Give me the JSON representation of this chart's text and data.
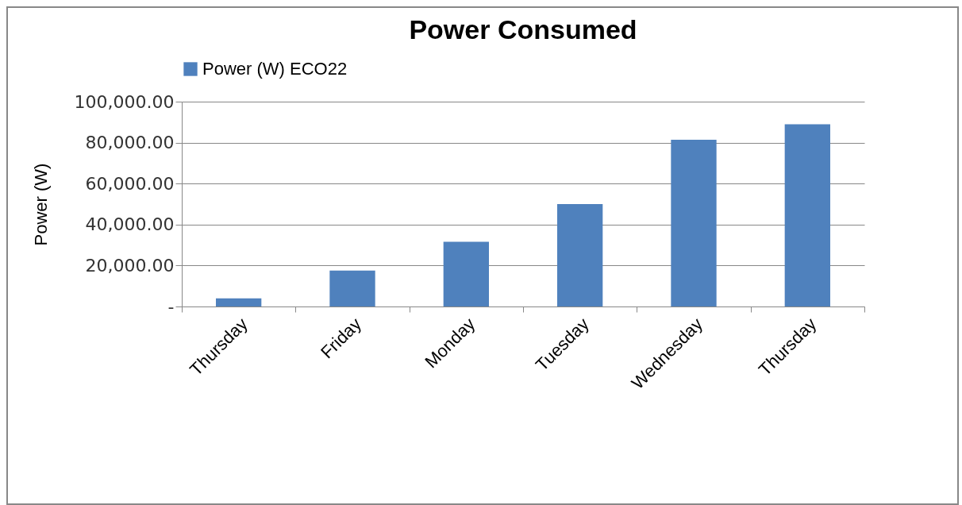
{
  "chart_data": {
    "type": "bar",
    "title": "Power Consumed",
    "ylabel": "Power (W)",
    "categories": [
      "Thursday",
      "Friday",
      "Monday",
      "Tuesday",
      "Wednesday",
      "Thursday"
    ],
    "series": [
      {
        "name": "Power (W) ECO22",
        "color": "#4f81bd",
        "values": [
          4000,
          17500,
          31600,
          50000,
          81400,
          89000
        ]
      }
    ],
    "ylim": [
      0,
      100000
    ],
    "yticks": [
      {
        "value": 0,
        "label": "-"
      },
      {
        "value": 20000,
        "label": "20,000.00"
      },
      {
        "value": 40000,
        "label": "40,000.00"
      },
      {
        "value": 60000,
        "label": "60,000.00"
      },
      {
        "value": 80000,
        "label": "80,000.00"
      },
      {
        "value": 100000,
        "label": "100,000.00"
      }
    ],
    "grid": "y",
    "legend": "top"
  }
}
